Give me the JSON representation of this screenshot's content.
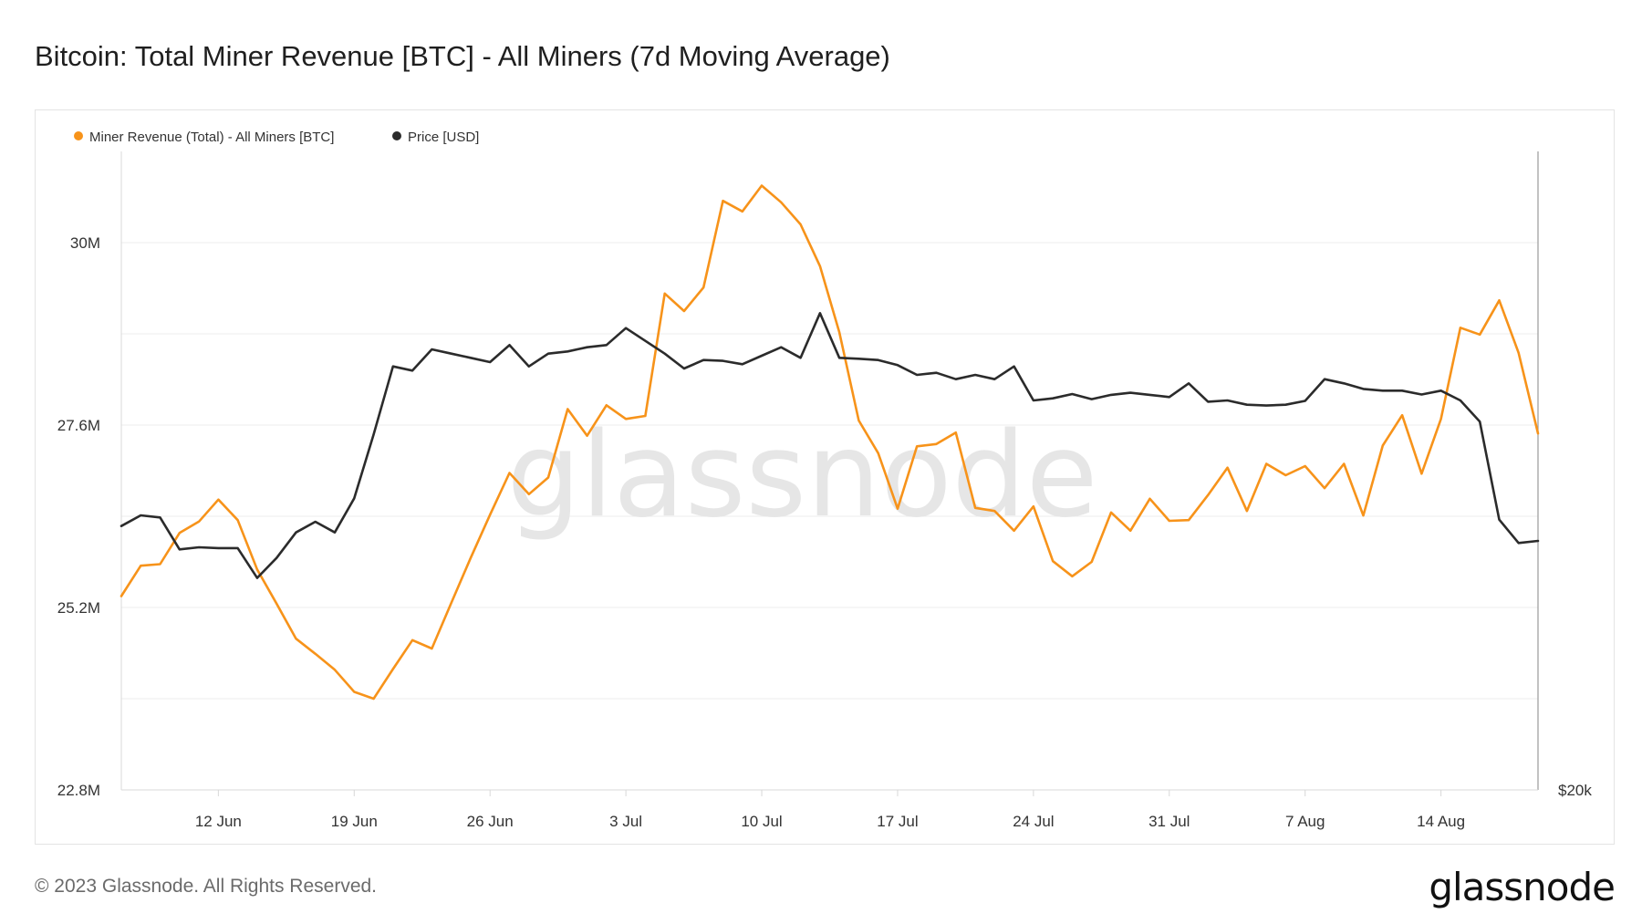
{
  "header": {
    "title": "Bitcoin: Total Miner Revenue [BTC] - All Miners (7d Moving Average)"
  },
  "footer": {
    "copyright": "© 2023 Glassnode. All Rights Reserved.",
    "brand": "glassnode"
  },
  "watermark": "glassnode",
  "colors": {
    "revenue": "#f7931a",
    "price": "#2b2b2b",
    "grid": "#ececec",
    "axis": "#d8d8d8",
    "text": "#333333",
    "watermark": "#e6e6e6"
  },
  "chart_data": {
    "type": "line",
    "title": "Bitcoin: Total Miner Revenue [BTC] - All Miners (7d Moving Average)",
    "legend_position": "top-left",
    "grid": true,
    "x_start": "2023-06-07",
    "x_end": "2023-08-19",
    "x_ticks": [
      {
        "date": "2023-06-12",
        "label": "12 Jun"
      },
      {
        "date": "2023-06-19",
        "label": "19 Jun"
      },
      {
        "date": "2023-06-26",
        "label": "26 Jun"
      },
      {
        "date": "2023-07-03",
        "label": "3 Jul"
      },
      {
        "date": "2023-07-10",
        "label": "10 Jul"
      },
      {
        "date": "2023-07-17",
        "label": "17 Jul"
      },
      {
        "date": "2023-07-24",
        "label": "24 Jul"
      },
      {
        "date": "2023-07-31",
        "label": "31 Jul"
      },
      {
        "date": "2023-08-07",
        "label": "7 Aug"
      },
      {
        "date": "2023-08-14",
        "label": "14 Aug"
      }
    ],
    "y_left": {
      "min": 22.8,
      "max": 31.2,
      "ticks": [
        {
          "value": 22.8,
          "label": "22.8M"
        },
        {
          "value": 25.2,
          "label": "25.2M"
        },
        {
          "value": 27.6,
          "label": "27.6M"
        },
        {
          "value": 30.0,
          "label": "30M"
        }
      ],
      "minor_gridlines": [
        24.0,
        26.4,
        28.8
      ]
    },
    "y_right": {
      "min": 20000,
      "max": 35000,
      "ticks": [
        {
          "value": 20000,
          "label": "$20k"
        }
      ]
    },
    "series": [
      {
        "name": "Miner Revenue (Total) - All Miners [BTC]",
        "axis": "left",
        "values": [
          [
            "2023-06-07",
            25.35
          ],
          [
            "2023-06-08",
            25.75
          ],
          [
            "2023-06-09",
            25.77
          ],
          [
            "2023-06-10",
            26.18
          ],
          [
            "2023-06-11",
            26.33
          ],
          [
            "2023-06-12",
            26.62
          ],
          [
            "2023-06-13",
            26.35
          ],
          [
            "2023-06-14",
            25.7
          ],
          [
            "2023-06-15",
            25.25
          ],
          [
            "2023-06-16",
            24.79
          ],
          [
            "2023-06-17",
            24.59
          ],
          [
            "2023-06-18",
            24.38
          ],
          [
            "2023-06-19",
            24.09
          ],
          [
            "2023-06-20",
            24.0
          ],
          [
            "2023-06-21",
            24.39
          ],
          [
            "2023-06-22",
            24.77
          ],
          [
            "2023-06-23",
            24.66
          ],
          [
            "2023-06-24",
            25.26
          ],
          [
            "2023-06-25",
            25.85
          ],
          [
            "2023-06-26",
            26.42
          ],
          [
            "2023-06-27",
            26.97
          ],
          [
            "2023-06-28",
            26.69
          ],
          [
            "2023-06-29",
            26.91
          ],
          [
            "2023-06-30",
            27.81
          ],
          [
            "2023-07-01",
            27.46
          ],
          [
            "2023-07-02",
            27.86
          ],
          [
            "2023-07-03",
            27.68
          ],
          [
            "2023-07-04",
            27.72
          ],
          [
            "2023-07-05",
            29.33
          ],
          [
            "2023-07-06",
            29.1
          ],
          [
            "2023-07-07",
            29.41
          ],
          [
            "2023-07-08",
            30.55
          ],
          [
            "2023-07-09",
            30.41
          ],
          [
            "2023-07-10",
            30.75
          ],
          [
            "2023-07-11",
            30.53
          ],
          [
            "2023-07-12",
            30.24
          ],
          [
            "2023-07-13",
            29.69
          ],
          [
            "2023-07-14",
            28.82
          ],
          [
            "2023-07-15",
            27.66
          ],
          [
            "2023-07-16",
            27.23
          ],
          [
            "2023-07-17",
            26.5
          ],
          [
            "2023-07-18",
            27.32
          ],
          [
            "2023-07-19",
            27.35
          ],
          [
            "2023-07-20",
            27.5
          ],
          [
            "2023-07-21",
            26.51
          ],
          [
            "2023-07-22",
            26.47
          ],
          [
            "2023-07-23",
            26.21
          ],
          [
            "2023-07-24",
            26.53
          ],
          [
            "2023-07-25",
            25.81
          ],
          [
            "2023-07-26",
            25.61
          ],
          [
            "2023-07-27",
            25.8
          ],
          [
            "2023-07-28",
            26.45
          ],
          [
            "2023-07-29",
            26.21
          ],
          [
            "2023-07-30",
            26.63
          ],
          [
            "2023-07-31",
            26.34
          ],
          [
            "2023-08-01",
            26.35
          ],
          [
            "2023-08-02",
            26.68
          ],
          [
            "2023-08-03",
            27.04
          ],
          [
            "2023-08-04",
            26.47
          ],
          [
            "2023-08-05",
            27.09
          ],
          [
            "2023-08-06",
            26.94
          ],
          [
            "2023-08-07",
            27.06
          ],
          [
            "2023-08-08",
            26.77
          ],
          [
            "2023-08-09",
            27.09
          ],
          [
            "2023-08-10",
            26.41
          ],
          [
            "2023-08-11",
            27.33
          ],
          [
            "2023-08-12",
            27.73
          ],
          [
            "2023-08-13",
            26.96
          ],
          [
            "2023-08-14",
            27.68
          ],
          [
            "2023-08-15",
            28.88
          ],
          [
            "2023-08-16",
            28.79
          ],
          [
            "2023-08-17",
            29.24
          ],
          [
            "2023-08-18",
            28.55
          ],
          [
            "2023-08-19",
            27.49
          ]
        ]
      },
      {
        "name": "Price [USD]",
        "axis": "right",
        "values": [
          [
            "2023-06-07",
            26200
          ],
          [
            "2023-06-08",
            26450
          ],
          [
            "2023-06-09",
            26400
          ],
          [
            "2023-06-10",
            25650
          ],
          [
            "2023-06-11",
            25700
          ],
          [
            "2023-06-12",
            25680
          ],
          [
            "2023-06-13",
            25680
          ],
          [
            "2023-06-14",
            24980
          ],
          [
            "2023-06-15",
            25450
          ],
          [
            "2023-06-16",
            26050
          ],
          [
            "2023-06-17",
            26300
          ],
          [
            "2023-06-18",
            26050
          ],
          [
            "2023-06-19",
            26850
          ],
          [
            "2023-06-20",
            28350
          ],
          [
            "2023-06-21",
            29950
          ],
          [
            "2023-06-22",
            29850
          ],
          [
            "2023-06-23",
            30350
          ],
          [
            "2023-06-24",
            30250
          ],
          [
            "2023-06-25",
            30150
          ],
          [
            "2023-06-26",
            30050
          ],
          [
            "2023-06-27",
            30450
          ],
          [
            "2023-06-28",
            29950
          ],
          [
            "2023-06-29",
            30250
          ],
          [
            "2023-06-30",
            30300
          ],
          [
            "2023-07-01",
            30400
          ],
          [
            "2023-07-02",
            30450
          ],
          [
            "2023-07-03",
            30850
          ],
          [
            "2023-07-04",
            30550
          ],
          [
            "2023-07-05",
            30250
          ],
          [
            "2023-07-06",
            29900
          ],
          [
            "2023-07-07",
            30100
          ],
          [
            "2023-07-08",
            30080
          ],
          [
            "2023-07-09",
            30000
          ],
          [
            "2023-07-10",
            30200
          ],
          [
            "2023-07-11",
            30400
          ],
          [
            "2023-07-12",
            30150
          ],
          [
            "2023-07-13",
            31200
          ],
          [
            "2023-07-14",
            30150
          ],
          [
            "2023-07-15",
            30130
          ],
          [
            "2023-07-16",
            30100
          ],
          [
            "2023-07-17",
            29980
          ],
          [
            "2023-07-18",
            29750
          ],
          [
            "2023-07-19",
            29800
          ],
          [
            "2023-07-20",
            29650
          ],
          [
            "2023-07-21",
            29750
          ],
          [
            "2023-07-22",
            29650
          ],
          [
            "2023-07-23",
            29950
          ],
          [
            "2023-07-24",
            29150
          ],
          [
            "2023-07-25",
            29200
          ],
          [
            "2023-07-26",
            29300
          ],
          [
            "2023-07-27",
            29180
          ],
          [
            "2023-07-28",
            29280
          ],
          [
            "2023-07-29",
            29330
          ],
          [
            "2023-07-30",
            29280
          ],
          [
            "2023-07-31",
            29230
          ],
          [
            "2023-08-01",
            29550
          ],
          [
            "2023-08-02",
            29120
          ],
          [
            "2023-08-03",
            29150
          ],
          [
            "2023-08-04",
            29050
          ],
          [
            "2023-08-05",
            29030
          ],
          [
            "2023-08-06",
            29050
          ],
          [
            "2023-08-07",
            29140
          ],
          [
            "2023-08-08",
            29650
          ],
          [
            "2023-08-09",
            29550
          ],
          [
            "2023-08-10",
            29420
          ],
          [
            "2023-08-11",
            29380
          ],
          [
            "2023-08-12",
            29380
          ],
          [
            "2023-08-13",
            29290
          ],
          [
            "2023-08-14",
            29380
          ],
          [
            "2023-08-15",
            29150
          ],
          [
            "2023-08-16",
            28650
          ],
          [
            "2023-08-17",
            26350
          ],
          [
            "2023-08-18",
            25800
          ],
          [
            "2023-08-19",
            25850
          ]
        ]
      }
    ]
  }
}
